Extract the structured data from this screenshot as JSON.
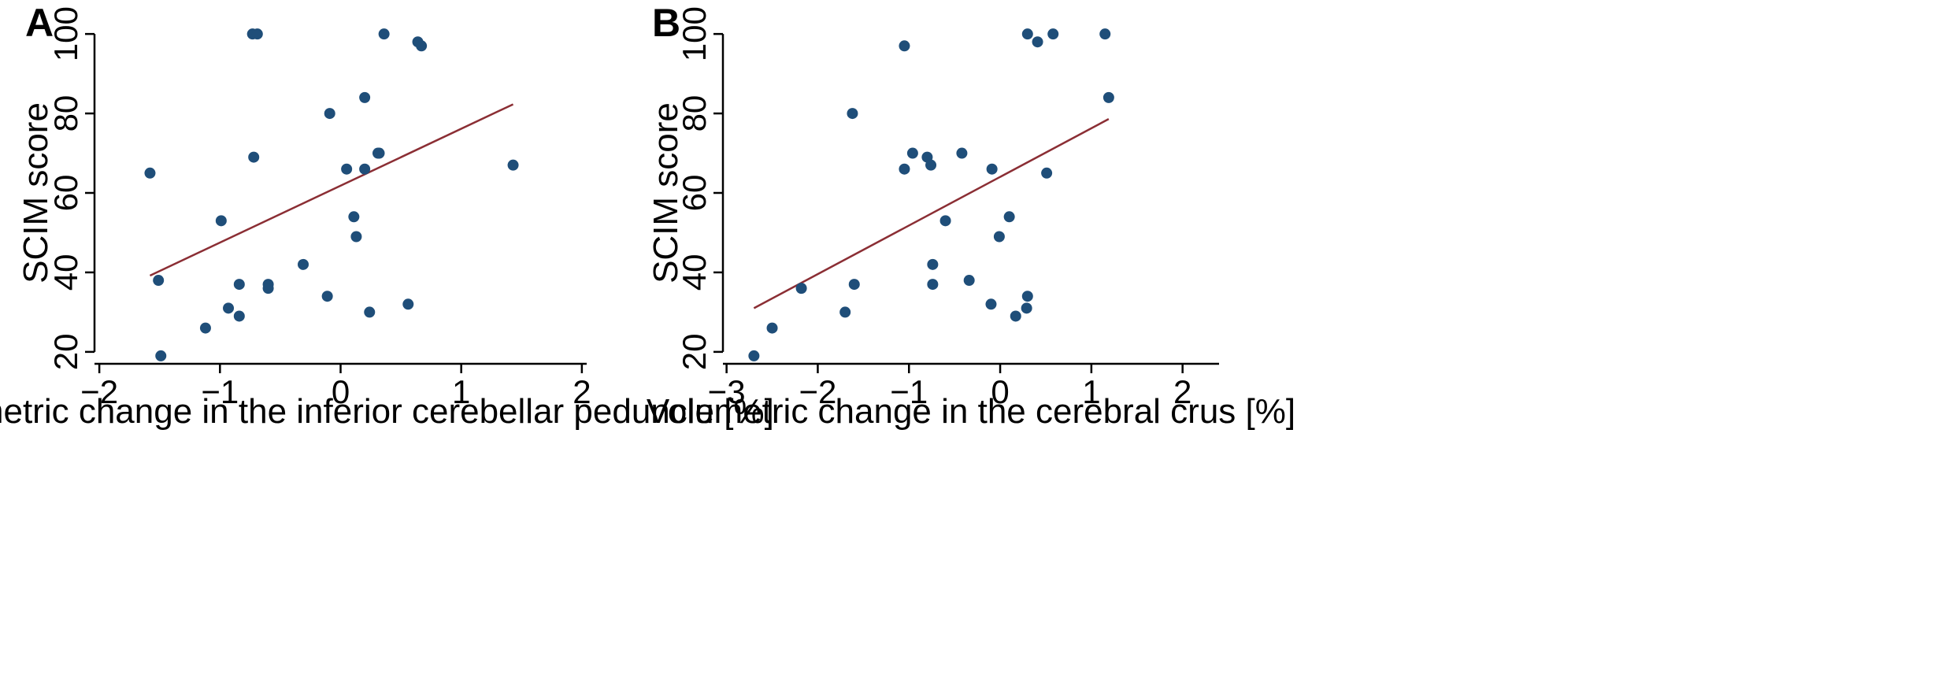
{
  "colors": {
    "point": "#1f4e79",
    "fit_line": "#8b2e34",
    "axis": "#000000"
  },
  "chart_data": [
    {
      "panel": "A",
      "type": "scatter",
      "xlabel": "Volumetric change in the inferior cerebellar peduncle [%]",
      "ylabel": "SCIM score",
      "xlim": [
        -2.04,
        2.04
      ],
      "ylim": [
        17,
        103
      ],
      "xticks": [
        -2,
        -1,
        0,
        1,
        2
      ],
      "xtick_labels": [
        "−2",
        "−1",
        "0",
        "1",
        "2"
      ],
      "yticks": [
        20,
        40,
        60,
        80,
        100
      ],
      "ytick_labels": [
        "20",
        "40",
        "60",
        "80",
        "100"
      ],
      "points": [
        {
          "x": -0.73,
          "y": 100
        },
        {
          "x": -0.69,
          "y": 100
        },
        {
          "x": 0.36,
          "y": 100
        },
        {
          "x": 0.64,
          "y": 98
        },
        {
          "x": 0.67,
          "y": 97
        },
        {
          "x": 0.2,
          "y": 84
        },
        {
          "x": -0.09,
          "y": 80
        },
        {
          "x": -0.72,
          "y": 69
        },
        {
          "x": 0.32,
          "y": 70
        },
        {
          "x": 0.31,
          "y": 70
        },
        {
          "x": 0.05,
          "y": 66
        },
        {
          "x": 0.2,
          "y": 66
        },
        {
          "x": 1.43,
          "y": 67
        },
        {
          "x": -1.58,
          "y": 65
        },
        {
          "x": -0.99,
          "y": 53
        },
        {
          "x": 0.11,
          "y": 54
        },
        {
          "x": 0.13,
          "y": 49
        },
        {
          "x": -0.31,
          "y": 42
        },
        {
          "x": -1.51,
          "y": 38
        },
        {
          "x": -0.84,
          "y": 37
        },
        {
          "x": -0.6,
          "y": 37
        },
        {
          "x": -0.6,
          "y": 36
        },
        {
          "x": -0.11,
          "y": 34
        },
        {
          "x": 0.56,
          "y": 32
        },
        {
          "x": -0.93,
          "y": 31
        },
        {
          "x": -0.84,
          "y": 29
        },
        {
          "x": 0.24,
          "y": 30
        },
        {
          "x": -1.12,
          "y": 26
        },
        {
          "x": -1.49,
          "y": 19
        }
      ],
      "fit_line": {
        "x": [
          -1.58,
          1.43
        ],
        "y": [
          39.2,
          82.3
        ]
      }
    },
    {
      "panel": "B",
      "type": "scatter",
      "xlabel": "Volumetric change in the cerebral crus [%]",
      "ylabel": "SCIM score",
      "xlim": [
        -3.04,
        2.4
      ],
      "ylim": [
        17,
        103
      ],
      "xticks": [
        -3,
        -2,
        -1,
        0,
        1,
        2
      ],
      "xtick_labels": [
        "−3",
        "−2",
        "−1",
        "0",
        "1",
        "2"
      ],
      "yticks": [
        20,
        40,
        60,
        80,
        100
      ],
      "ytick_labels": [
        "20",
        "40",
        "60",
        "80",
        "100"
      ],
      "points": [
        {
          "x": 0.3,
          "y": 100
        },
        {
          "x": 0.58,
          "y": 100
        },
        {
          "x": 1.15,
          "y": 100
        },
        {
          "x": 0.41,
          "y": 98
        },
        {
          "x": -1.05,
          "y": 97
        },
        {
          "x": 1.19,
          "y": 84
        },
        {
          "x": -1.62,
          "y": 80
        },
        {
          "x": -0.96,
          "y": 70
        },
        {
          "x": -0.42,
          "y": 70
        },
        {
          "x": -0.8,
          "y": 69
        },
        {
          "x": -0.76,
          "y": 67
        },
        {
          "x": -1.05,
          "y": 66
        },
        {
          "x": -0.09,
          "y": 66
        },
        {
          "x": 0.51,
          "y": 65
        },
        {
          "x": 0.1,
          "y": 54
        },
        {
          "x": -0.6,
          "y": 53
        },
        {
          "x": -0.01,
          "y": 49
        },
        {
          "x": -0.74,
          "y": 42
        },
        {
          "x": -0.34,
          "y": 38
        },
        {
          "x": -1.6,
          "y": 37
        },
        {
          "x": -0.74,
          "y": 37
        },
        {
          "x": -2.18,
          "y": 36
        },
        {
          "x": 0.3,
          "y": 34
        },
        {
          "x": -0.1,
          "y": 32
        },
        {
          "x": 0.29,
          "y": 31
        },
        {
          "x": -1.7,
          "y": 30
        },
        {
          "x": 0.17,
          "y": 29
        },
        {
          "x": -2.5,
          "y": 26
        },
        {
          "x": -2.7,
          "y": 19
        }
      ],
      "fit_line": {
        "x": [
          -2.7,
          1.19
        ],
        "y": [
          31.0,
          78.6
        ]
      }
    }
  ]
}
